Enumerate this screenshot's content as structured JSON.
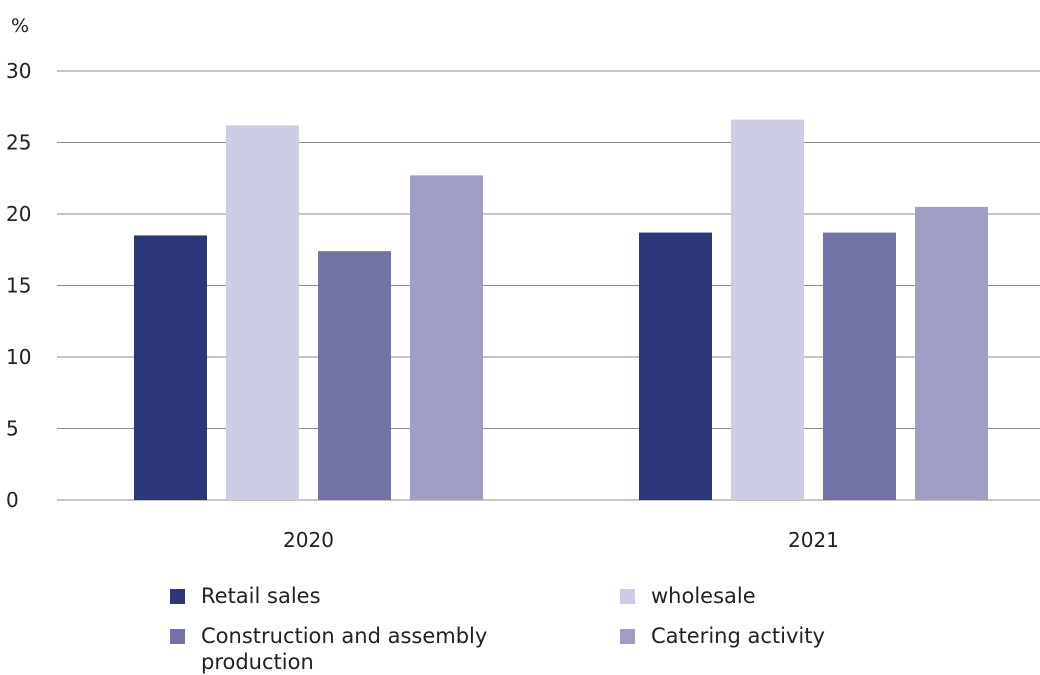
{
  "chart_data": {
    "type": "bar",
    "title": "",
    "unit_label": "%",
    "xlabel": "",
    "ylabel": "%",
    "ylim": [
      0,
      30
    ],
    "yticks": [
      0,
      5,
      10,
      15,
      20,
      25,
      30
    ],
    "grid": true,
    "legend_position": "bottom",
    "categories": [
      "2020",
      "2021"
    ],
    "series": [
      {
        "name": "Retail sales",
        "color": "#2b377a",
        "values": [
          18.5,
          18.7
        ]
      },
      {
        "name": "wholesale",
        "color": "#cccce4",
        "values": [
          26.2,
          26.6
        ]
      },
      {
        "name": "Construction and assembly production",
        "color": "#7373a8",
        "values": [
          17.4,
          18.7
        ]
      },
      {
        "name": "Catering activity",
        "color": "#9f9fc6",
        "values": [
          22.7,
          20.5
        ]
      }
    ]
  }
}
